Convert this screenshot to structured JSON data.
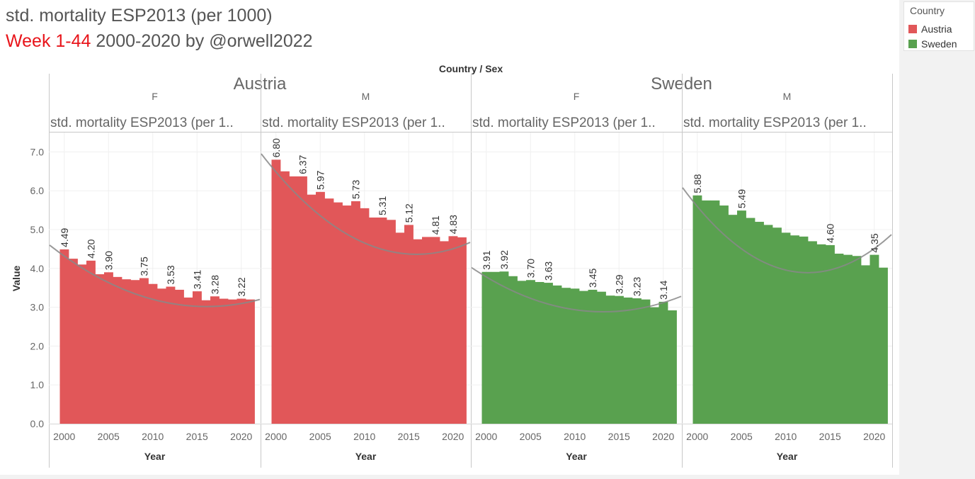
{
  "title": {
    "line1": "std. mortality ESP2013  (per 1000)",
    "line2_highlight": "Week 1-44",
    "line2_rest": "2000-2020 by @orwell2022"
  },
  "legend": {
    "title": "Country",
    "items": [
      {
        "label": "Austria",
        "color": "#e15759"
      },
      {
        "label": "Sweden",
        "color": "#59a14f"
      }
    ]
  },
  "chart_data": {
    "type": "bar",
    "column_header": "Country / Sex",
    "measure_header": "std. mortality ESP2013  (per 1..",
    "ylabel": "Value",
    "xlabel": "Year",
    "ylim": [
      0,
      7.5
    ],
    "yticks": [
      "0.0",
      "1.0",
      "2.0",
      "3.0",
      "4.0",
      "5.0",
      "6.0",
      "7.0"
    ],
    "xticks": [
      "2000",
      "2005",
      "2010",
      "2015",
      "2020"
    ],
    "countries": [
      "Austria",
      "Sweden"
    ],
    "trend_color": "#888888",
    "x": [
      2000,
      2001,
      2002,
      2003,
      2004,
      2005,
      2006,
      2007,
      2008,
      2009,
      2010,
      2011,
      2012,
      2013,
      2014,
      2015,
      2016,
      2017,
      2018,
      2019,
      2020,
      2021
    ],
    "panels": [
      {
        "country": "Austria",
        "sex": "F",
        "color": "#e15759",
        "values": [
          4.49,
          4.25,
          4.1,
          4.2,
          3.85,
          3.9,
          3.78,
          3.72,
          3.7,
          3.75,
          3.6,
          3.48,
          3.53,
          3.45,
          3.25,
          3.41,
          3.18,
          3.28,
          3.22,
          3.2,
          3.22,
          3.2
        ],
        "labels": {
          "0": "4.49",
          "3": "4.20",
          "5": "3.90",
          "9": "3.75",
          "12": "3.53",
          "15": "3.41",
          "17": "3.28",
          "20": "3.22"
        },
        "trend": [
          4.6,
          3.19,
          3.2
        ]
      },
      {
        "country": "Austria",
        "sex": "M",
        "color": "#e15759",
        "values": [
          6.8,
          6.5,
          6.37,
          6.37,
          5.9,
          5.97,
          5.8,
          5.7,
          5.62,
          5.73,
          5.55,
          5.31,
          5.31,
          5.25,
          4.92,
          5.12,
          4.75,
          4.81,
          4.81,
          4.7,
          4.83,
          4.8
        ],
        "labels": {
          "0": "6.80",
          "3": "6.37",
          "5": "5.97",
          "9": "5.73",
          "12": "5.31",
          "15": "5.12",
          "18": "4.81",
          "20": "4.83"
        },
        "trend": [
          6.95,
          4.64,
          4.67
        ]
      },
      {
        "country": "Sweden",
        "sex": "F",
        "color": "#59a14f",
        "values": [
          3.91,
          3.91,
          3.92,
          3.8,
          3.68,
          3.7,
          3.65,
          3.63,
          3.56,
          3.5,
          3.48,
          3.42,
          3.45,
          3.4,
          3.3,
          3.29,
          3.25,
          3.23,
          3.2,
          3.0,
          3.14,
          2.92
        ],
        "labels": {
          "0": "3.91",
          "2": "3.92",
          "5": "3.70",
          "7": "3.63",
          "12": "3.45",
          "15": "3.29",
          "17": "3.23",
          "20": "3.14"
        },
        "trend": [
          4.02,
          2.93,
          3.28
        ]
      },
      {
        "country": "Sweden",
        "sex": "M",
        "color": "#59a14f",
        "values": [
          5.88,
          5.75,
          5.75,
          5.62,
          5.38,
          5.49,
          5.3,
          5.2,
          5.12,
          5.05,
          4.92,
          4.85,
          4.82,
          4.7,
          4.62,
          4.6,
          4.38,
          4.35,
          4.32,
          4.08,
          4.35,
          4.02
        ],
        "labels": {
          "0": "5.88",
          "5": "5.49",
          "15": "4.60",
          "20": "4.35"
        },
        "trend": [
          6.08,
          3.95,
          4.87
        ]
      }
    ]
  }
}
